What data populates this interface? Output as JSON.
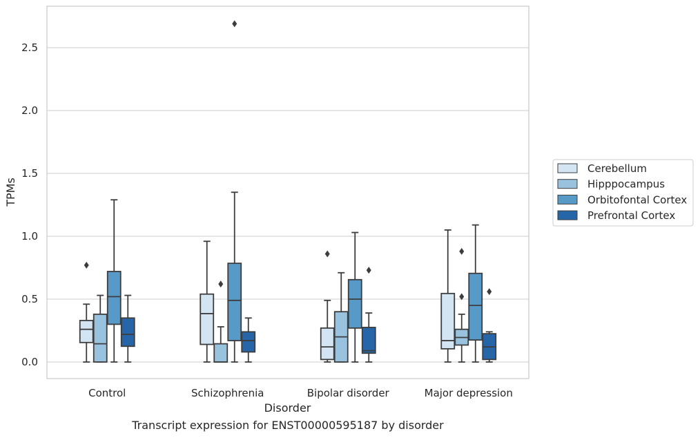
{
  "caption": "Transcript expression for ENST00000595187 by disorder",
  "chart_data": {
    "type": "box",
    "title": "",
    "xlabel": "Disorder",
    "ylabel": "TPMs",
    "categories": [
      "Control",
      "Schizophrenia",
      "Bipolar disorder",
      "Major depression"
    ],
    "ylim": [
      -0.13,
      2.84
    ],
    "yticks": [
      "0.0",
      "0.5",
      "1.0",
      "1.5",
      "2.0",
      "2.5"
    ],
    "grid": "horizontal",
    "legend_position": "right",
    "series": [
      {
        "name": "Cerebellum",
        "color": "#d3e4f3",
        "boxes": [
          {
            "whisker_low": 0.0,
            "q1": 0.155,
            "median": 0.26,
            "q3": 0.33,
            "whisker_high": 0.46,
            "outliers": [
              0.77
            ]
          },
          {
            "whisker_low": 0.0,
            "q1": 0.14,
            "median": 0.385,
            "q3": 0.54,
            "whisker_high": 0.96,
            "outliers": []
          },
          {
            "whisker_low": 0.0,
            "q1": 0.02,
            "median": 0.12,
            "q3": 0.27,
            "whisker_high": 0.49,
            "outliers": [
              0.86
            ]
          },
          {
            "whisker_low": 0.0,
            "q1": 0.105,
            "median": 0.17,
            "q3": 0.545,
            "whisker_high": 1.05,
            "outliers": []
          }
        ]
      },
      {
        "name": "Hipppocampus",
        "color": "#99c2de",
        "boxes": [
          {
            "whisker_low": 0.0,
            "q1": 0.0,
            "median": 0.145,
            "q3": 0.38,
            "whisker_high": 0.53,
            "outliers": []
          },
          {
            "whisker_low": 0.0,
            "q1": 0.0,
            "median": 0.0,
            "q3": 0.145,
            "whisker_high": 0.28,
            "outliers": [
              0.62
            ]
          },
          {
            "whisker_low": 0.0,
            "q1": 0.0,
            "median": 0.2,
            "q3": 0.4,
            "whisker_high": 0.71,
            "outliers": []
          },
          {
            "whisker_low": 0.0,
            "q1": 0.135,
            "median": 0.195,
            "q3": 0.26,
            "whisker_high": 0.38,
            "outliers": [
              0.52,
              0.88
            ]
          }
        ]
      },
      {
        "name": "Orbitofontal Cortex",
        "color": "#5799c7",
        "boxes": [
          {
            "whisker_low": 0.0,
            "q1": 0.3,
            "median": 0.52,
            "q3": 0.72,
            "whisker_high": 1.29,
            "outliers": []
          },
          {
            "whisker_low": 0.0,
            "q1": 0.17,
            "median": 0.49,
            "q3": 0.785,
            "whisker_high": 1.35,
            "outliers": [
              2.69
            ]
          },
          {
            "whisker_low": 0.0,
            "q1": 0.27,
            "median": 0.5,
            "q3": 0.655,
            "whisker_high": 1.03,
            "outliers": []
          },
          {
            "whisker_low": 0.0,
            "q1": 0.175,
            "median": 0.45,
            "q3": 0.705,
            "whisker_high": 1.09,
            "outliers": []
          }
        ]
      },
      {
        "name": "Prefrontal Cortex",
        "color": "#2666a8",
        "boxes": [
          {
            "whisker_low": 0.0,
            "q1": 0.125,
            "median": 0.22,
            "q3": 0.35,
            "whisker_high": 0.53,
            "outliers": []
          },
          {
            "whisker_low": 0.0,
            "q1": 0.08,
            "median": 0.17,
            "q3": 0.24,
            "whisker_high": 0.35,
            "outliers": []
          },
          {
            "whisker_low": 0.0,
            "q1": 0.07,
            "median": 0.09,
            "q3": 0.275,
            "whisker_high": 0.39,
            "outliers": [
              0.73
            ]
          },
          {
            "whisker_low": 0.0,
            "q1": 0.02,
            "median": 0.12,
            "q3": 0.225,
            "whisker_high": 0.24,
            "outliers": [
              0.56
            ]
          }
        ]
      }
    ]
  }
}
